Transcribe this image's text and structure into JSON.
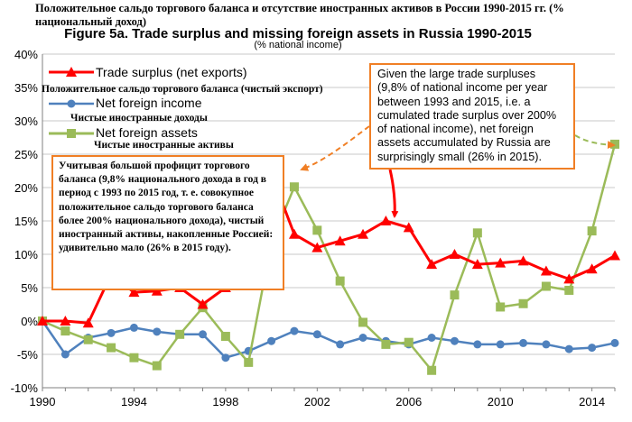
{
  "titles": {
    "ru_title": "Положительное сальдо торгового баланса и отсутствие иностранных активов в России 1990-2015 гг. (% национальный доход)",
    "en_title": "Figure 5a. Trade surplus and missing foreign assets in Russia 1990-2015",
    "en_subtitle": "(% national income)"
  },
  "legend": {
    "trade_en": "Trade surplus (net exports)",
    "trade_ru": "Положительное сальдо торгового баланса (чистый экспорт)",
    "income_en": "Net foreign income",
    "income_ru": "Чистые иностранные доходы",
    "assets_en": "Net foreign assets",
    "assets_ru": "Чистые иностранные активы"
  },
  "annotations": {
    "ru_box": "Учитывая большой профицит торгового баланса (9,8% национального дохода в год в период с 1993 по 2015 год, т. е. совокупное положительное сальдо торгового баланса более 200% национального дохода), чистый иностранный активы, накопленные Россией: удивительно мало (26% в 2015 году).",
    "en_box": "Given the large trade surpluses (9,8% of national income per year between 1993 and 2015, i.e. a cumulated trade surplus over 200% of national income), net foreign assets accumulated by Russia are surprisingly small (26% in 2015)."
  },
  "colors": {
    "trade": "#ff0000",
    "income": "#4f81bd",
    "assets": "#9bbb59",
    "annotation_border": "#f07f25"
  },
  "chart_data": {
    "type": "line",
    "x": [
      1990,
      1991,
      1992,
      1993,
      1994,
      1995,
      1996,
      1997,
      1998,
      1999,
      2000,
      2001,
      2002,
      2003,
      2004,
      2005,
      2006,
      2007,
      2008,
      2009,
      2010,
      2011,
      2012,
      2013,
      2014,
      2015
    ],
    "series": [
      {
        "name": "Trade surplus (net exports)",
        "color": "#ff0000",
        "marker": "triangle",
        "values": [
          0,
          0,
          -0.3,
          7.0,
          4.3,
          4.5,
          5.0,
          2.5,
          5.0,
          18.5,
          22.0,
          13.0,
          11.0,
          12.0,
          13.0,
          15.0,
          14.0,
          8.5,
          10.0,
          8.5,
          8.7,
          9.0,
          7.5,
          6.3,
          7.8,
          9.8
        ]
      },
      {
        "name": "Net foreign income",
        "color": "#4f81bd",
        "marker": "circle",
        "values": [
          0,
          -5.0,
          -2.5,
          -1.8,
          -1.0,
          -1.6,
          -2.0,
          -2.0,
          -5.5,
          -4.5,
          -3.0,
          -1.5,
          -2.0,
          -3.5,
          -2.5,
          -3.0,
          -3.5,
          -2.5,
          -3.0,
          -3.5,
          -3.5,
          -3.3,
          -3.5,
          -4.2,
          -4.0,
          -3.3
        ]
      },
      {
        "name": "Net foreign assets",
        "color": "#9bbb59",
        "marker": "square",
        "values": [
          0,
          -1.5,
          -2.8,
          -4.0,
          -5.5,
          -6.7,
          -2.0,
          2.0,
          -2.3,
          -6.2,
          11.8,
          20.1,
          13.6,
          6.0,
          -0.2,
          -3.5,
          -3.2,
          -7.4,
          3.9,
          13.2,
          2.1,
          2.6,
          5.2,
          4.6,
          13.5,
          26.5
        ]
      }
    ],
    "xlim": [
      1990,
      2015
    ],
    "ylim": [
      -10,
      40
    ],
    "xticks": [
      1990,
      1994,
      1998,
      2002,
      2006,
      2010,
      2014
    ],
    "yticks": [
      -10,
      -5,
      0,
      5,
      10,
      15,
      20,
      25,
      30,
      35,
      40
    ],
    "ytick_labels": [
      "-10%",
      "-5%",
      "0%",
      "5%",
      "10%",
      "15%",
      "20%",
      "25%",
      "30%",
      "35%",
      "40%"
    ],
    "grid": "horizontal"
  }
}
